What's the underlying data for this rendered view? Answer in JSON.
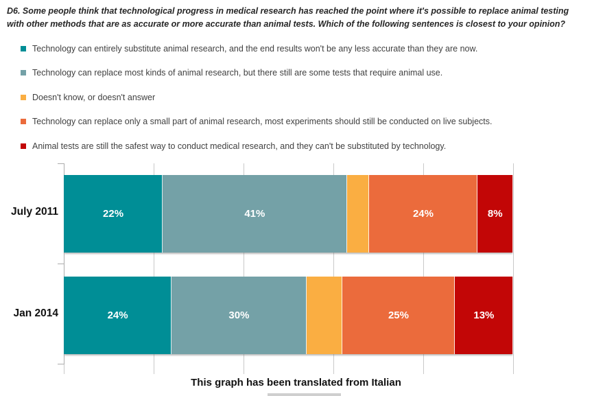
{
  "title": "D6. Some people think that technological progress in medical research has reached the point where it's possible to replace animal testing with other methods that are as accurate or more accurate than animal tests. Which of the following sentences is closest to your opinion?",
  "footer": "This graph has been translated from Italian",
  "legend": {
    "items": [
      {
        "label": "Technology can entirely substitute animal research, and the end results won't be any less accurate than they are now.",
        "color": "#008E96"
      },
      {
        "label": "Technology can replace most kinds of animal research, but there still are some tests that require animal use.",
        "color": "#74A1A7"
      },
      {
        "label": "Doesn't know, or doesn't answer",
        "color": "#FAAE42"
      },
      {
        "label": "Technology can replace only a small part of animal research, most experiments should still be conducted on live subjects.",
        "color": "#EB6B3C"
      },
      {
        "label": "Animal tests are still the safest way to conduct medical research, and they can't be substituted by technology.",
        "color": "#C20606"
      }
    ]
  },
  "chart_data": {
    "type": "bar",
    "orientation": "horizontal",
    "stacked": true,
    "unit": "%",
    "categories": [
      "July 2011",
      "Jan 2014"
    ],
    "series": [
      {
        "name": "Technology can entirely substitute animal research, and the end results won't be any less accurate than they are now.",
        "color": "#008E96",
        "values": [
          22,
          24
        ],
        "data_labels_visible": true
      },
      {
        "name": "Technology can replace most kinds of animal research, but there still are some tests that require animal use.",
        "color": "#74A1A7",
        "values": [
          41,
          30
        ],
        "data_labels_visible": true
      },
      {
        "name": "Doesn't know, or doesn't answer",
        "color": "#FAAE42",
        "values": [
          5,
          8
        ],
        "data_labels_visible": false
      },
      {
        "name": "Technology can replace only a small part of animal research, most experiments should still be conducted on live subjects.",
        "color": "#EB6B3C",
        "values": [
          24,
          25
        ],
        "data_labels_visible": true
      },
      {
        "name": "Animal tests are still the safest way to conduct medical research, and they can't be substituted by technology.",
        "color": "#C20606",
        "values": [
          8,
          13
        ],
        "data_labels_visible": true
      }
    ],
    "xlim": [
      0,
      100
    ],
    "gridlines_percent": [
      0,
      20,
      40,
      60,
      80,
      100
    ],
    "grid": true,
    "legend_position": "top-left",
    "data_labels": "white percent labels inside segments; hidden on the Doesn't know segment"
  },
  "colors": {
    "gridline": "#C9C9C9",
    "axis": "#ABABAB",
    "data_label_text": "#FFFFFF",
    "background": "#FFFFFF"
  }
}
